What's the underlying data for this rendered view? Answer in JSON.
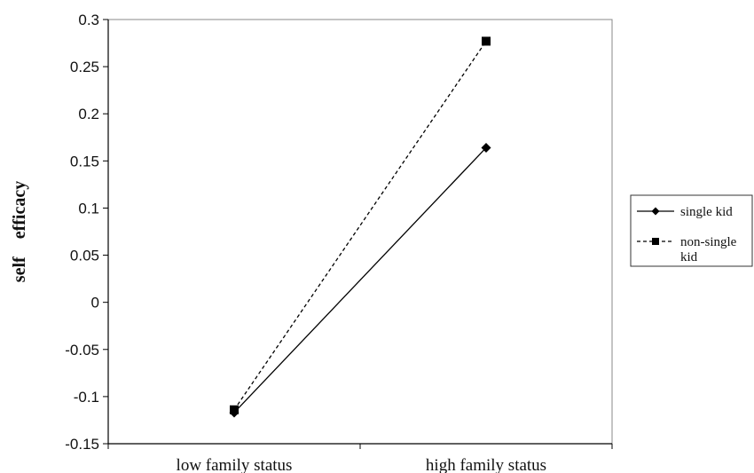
{
  "chart_data": {
    "type": "line",
    "title": "",
    "xlabel": "",
    "ylabel": "self    efficacy",
    "categories": [
      "low family status",
      "high family status"
    ],
    "ylim": [
      -0.15,
      0.3
    ],
    "yticks": [
      "0.3",
      "0.25",
      "0.2",
      "0.15",
      "0.1",
      "0.05",
      "0",
      "-0.05",
      "-0.1",
      "-0.15"
    ],
    "grid": false,
    "legend_position": "right",
    "series": [
      {
        "name": "single kid",
        "values": [
          -0.117,
          0.164
        ],
        "marker": "diamond",
        "line": "solid",
        "color": "#000000"
      },
      {
        "name": "non-single kid",
        "name_lines": [
          "non-single",
          "kid"
        ],
        "values": [
          -0.114,
          0.277
        ],
        "marker": "square",
        "line": "dashed",
        "color": "#000000"
      }
    ]
  }
}
